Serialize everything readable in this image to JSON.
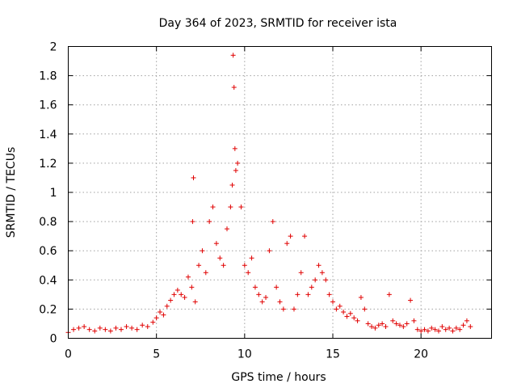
{
  "chart_data": {
    "type": "scatter",
    "title": "Day 364 of 2023, SRMTID for receiver ista",
    "xlabel": "GPS time / hours",
    "ylabel": "SRMTID / TECUs",
    "xlim": [
      0,
      24
    ],
    "ylim": [
      0,
      2
    ],
    "xticks": [
      0,
      5,
      10,
      15,
      20
    ],
    "xtick_labels": [
      "0",
      "5",
      "10",
      "15",
      "20"
    ],
    "yticks": [
      0,
      0.2,
      0.4,
      0.6,
      0.8,
      1,
      1.2,
      1.4,
      1.6,
      1.8,
      2
    ],
    "ytick_labels": [
      "0",
      "0.2",
      "0.4",
      "0.6",
      "0.8",
      "1",
      "1.2",
      "1.4",
      "1.6",
      "1.8",
      "2"
    ],
    "grid": true,
    "marker": "+",
    "marker_color": "#e00000",
    "series": [
      {
        "name": "SRMTID",
        "x": [
          0.0,
          0.3,
          0.6,
          0.9,
          1.2,
          1.5,
          1.8,
          2.1,
          2.4,
          2.7,
          3.0,
          3.3,
          3.6,
          3.9,
          4.2,
          4.5,
          4.8,
          5.0,
          5.2,
          5.4,
          5.6,
          5.8,
          6.0,
          6.2,
          6.4,
          6.6,
          6.8,
          7.0,
          7.05,
          7.1,
          7.2,
          7.4,
          7.6,
          7.8,
          8.0,
          8.2,
          8.4,
          8.6,
          8.8,
          9.0,
          9.2,
          9.3,
          9.35,
          9.4,
          9.45,
          9.5,
          9.6,
          9.8,
          10.0,
          10.2,
          10.4,
          10.6,
          10.8,
          11.0,
          11.2,
          11.4,
          11.6,
          11.8,
          12.0,
          12.2,
          12.4,
          12.6,
          12.8,
          13.0,
          13.2,
          13.4,
          13.6,
          13.8,
          14.0,
          14.2,
          14.4,
          14.6,
          14.8,
          15.0,
          15.2,
          15.4,
          15.6,
          15.8,
          16.0,
          16.2,
          16.4,
          16.6,
          16.8,
          17.0,
          17.2,
          17.4,
          17.6,
          17.8,
          18.0,
          18.2,
          18.4,
          18.6,
          18.8,
          19.0,
          19.2,
          19.4,
          19.6,
          19.8,
          20.0,
          20.2,
          20.4,
          20.6,
          20.8,
          21.0,
          21.2,
          21.4,
          21.6,
          21.8,
          22.0,
          22.2,
          22.4,
          22.6,
          22.8
        ],
        "y": [
          0.04,
          0.06,
          0.07,
          0.08,
          0.06,
          0.05,
          0.07,
          0.06,
          0.05,
          0.07,
          0.06,
          0.08,
          0.07,
          0.06,
          0.09,
          0.08,
          0.11,
          0.14,
          0.18,
          0.16,
          0.22,
          0.26,
          0.3,
          0.33,
          0.3,
          0.28,
          0.42,
          0.35,
          0.8,
          1.1,
          0.25,
          0.5,
          0.6,
          0.45,
          0.8,
          0.9,
          0.65,
          0.55,
          0.5,
          0.75,
          0.9,
          1.05,
          1.94,
          1.72,
          1.3,
          1.15,
          1.2,
          0.9,
          0.5,
          0.45,
          0.55,
          0.35,
          0.3,
          0.25,
          0.28,
          0.6,
          0.8,
          0.35,
          0.25,
          0.2,
          0.65,
          0.7,
          0.2,
          0.3,
          0.45,
          0.7,
          0.3,
          0.35,
          0.4,
          0.5,
          0.45,
          0.4,
          0.3,
          0.25,
          0.2,
          0.22,
          0.18,
          0.15,
          0.17,
          0.14,
          0.12,
          0.28,
          0.2,
          0.1,
          0.08,
          0.07,
          0.09,
          0.1,
          0.08,
          0.3,
          0.12,
          0.1,
          0.09,
          0.08,
          0.1,
          0.26,
          0.12,
          0.06,
          0.05,
          0.06,
          0.05,
          0.07,
          0.06,
          0.05,
          0.08,
          0.06,
          0.07,
          0.05,
          0.07,
          0.06,
          0.09,
          0.12,
          0.08
        ]
      }
    ]
  }
}
